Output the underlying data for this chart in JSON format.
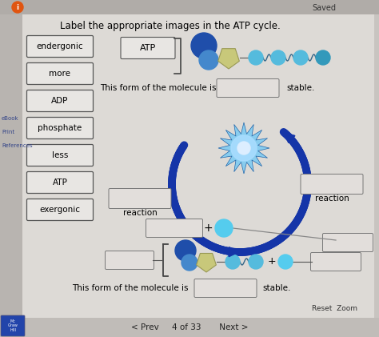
{
  "bg_color": "#c8c4c0",
  "content_bg": "#dddad6",
  "title": "Label the appropriate images in the ATP cycle.",
  "title_fontsize": 8.5,
  "saved_text": "Saved",
  "sidebar_labels": [
    "endergonic",
    "more",
    "ADP",
    "phosphate",
    "less",
    "ATP",
    "exergonic"
  ],
  "top_atp_label": "ATP",
  "top_sentence_1": "This form of the molecule is",
  "top_sentence_2": "stable.",
  "left_reaction_label": "reaction",
  "right_reaction_label": "reaction",
  "plus_label": "+",
  "reset_zoom": "Reset  Zoom",
  "nav_text": "< Prev     4 of 33       Next >",
  "bottom_sentence_1": "This form of the molecule is",
  "bottom_sentence_2": "stable.",
  "arrow_color": "#1535a8",
  "cyan_color": "#55ccee",
  "molecule_blue_color": "#1f4eaa",
  "molecule_blue_light": "#4488cc",
  "molecule_pentagon_color": "#c8c87a",
  "bead_color": "#55bbdd",
  "bead_dark": "#3399bb",
  "burst_color": "#55aadd",
  "burst_spike": "#ffffff",
  "box_face": "#e2dedb",
  "box_edge": "#777777",
  "label_box_face": "#e8e6e3",
  "label_box_edge": "#555555"
}
